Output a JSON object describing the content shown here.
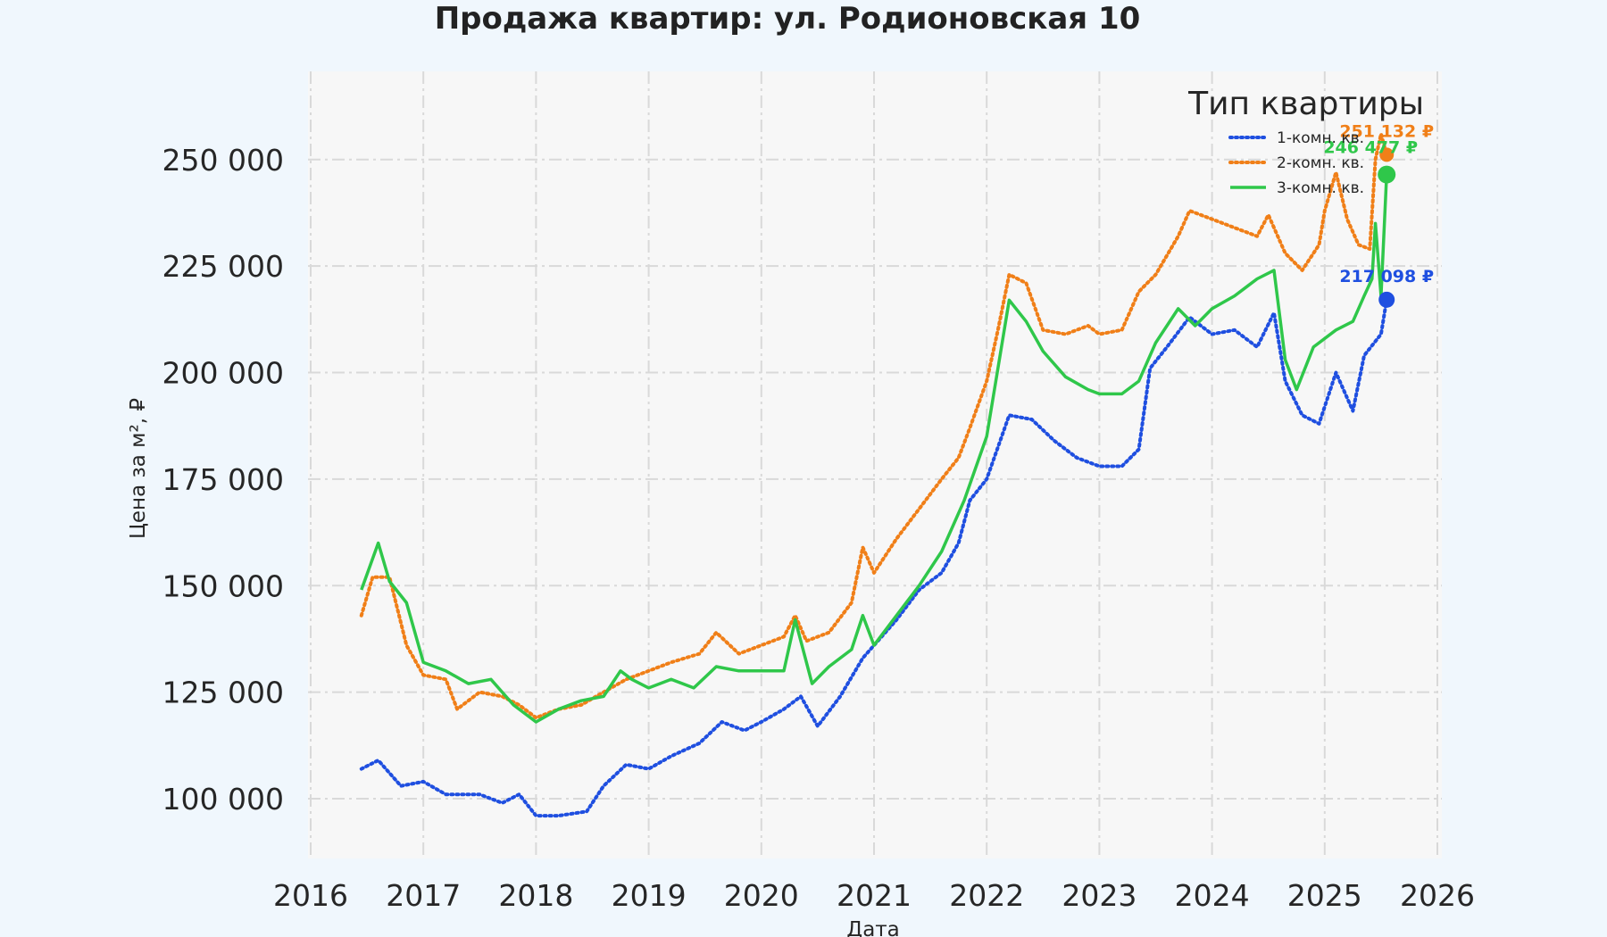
{
  "chart_data": {
    "type": "line",
    "title": "Продажа квартир: ул. Родионовская 10",
    "xlabel": "Дата",
    "ylabel": "Цена за м², ₽",
    "xlim": [
      2016,
      2026
    ],
    "ylim": [
      85000,
      265000
    ],
    "x_ticks": [
      "2016",
      "2017",
      "2018",
      "2019",
      "2020",
      "2021",
      "2022",
      "2023",
      "2024",
      "2025",
      "2026"
    ],
    "y_ticks": [
      "100 000",
      "125 000",
      "150 000",
      "175 000",
      "200 000",
      "225 000",
      "250 000"
    ],
    "grid": true,
    "legend": {
      "title": "Тип квартиры",
      "placement": "top-right"
    },
    "series": [
      {
        "name": "1-комн. кв.",
        "color": "#1f4fe0",
        "style": "dotted",
        "end_label": "217 098 ₽",
        "end_value": 217098,
        "points": [
          [
            2016.45,
            107000
          ],
          [
            2016.6,
            109000
          ],
          [
            2016.8,
            103000
          ],
          [
            2017.0,
            104000
          ],
          [
            2017.2,
            101000
          ],
          [
            2017.5,
            101000
          ],
          [
            2017.7,
            99000
          ],
          [
            2017.85,
            101000
          ],
          [
            2018.0,
            96000
          ],
          [
            2018.2,
            96000
          ],
          [
            2018.45,
            97000
          ],
          [
            2018.6,
            103000
          ],
          [
            2018.8,
            108000
          ],
          [
            2019.0,
            107000
          ],
          [
            2019.2,
            110000
          ],
          [
            2019.45,
            113000
          ],
          [
            2019.65,
            118000
          ],
          [
            2019.85,
            116000
          ],
          [
            2020.0,
            118000
          ],
          [
            2020.2,
            121000
          ],
          [
            2020.35,
            124000
          ],
          [
            2020.5,
            117000
          ],
          [
            2020.7,
            124000
          ],
          [
            2020.9,
            133000
          ],
          [
            2021.0,
            136000
          ],
          [
            2021.2,
            142000
          ],
          [
            2021.4,
            149000
          ],
          [
            2021.6,
            153000
          ],
          [
            2021.75,
            160000
          ],
          [
            2021.85,
            170000
          ],
          [
            2022.0,
            175000
          ],
          [
            2022.2,
            190000
          ],
          [
            2022.4,
            189000
          ],
          [
            2022.6,
            184000
          ],
          [
            2022.8,
            180000
          ],
          [
            2023.0,
            178000
          ],
          [
            2023.2,
            178000
          ],
          [
            2023.35,
            182000
          ],
          [
            2023.45,
            201000
          ],
          [
            2023.6,
            206000
          ],
          [
            2023.8,
            213000
          ],
          [
            2024.0,
            209000
          ],
          [
            2024.2,
            210000
          ],
          [
            2024.4,
            206000
          ],
          [
            2024.55,
            214000
          ],
          [
            2024.65,
            198000
          ],
          [
            2024.8,
            190000
          ],
          [
            2024.95,
            188000
          ],
          [
            2025.1,
            200000
          ],
          [
            2025.25,
            191000
          ],
          [
            2025.35,
            204000
          ],
          [
            2025.5,
            209000
          ],
          [
            2025.55,
            217098
          ]
        ]
      },
      {
        "name": "2-комн. кв.",
        "color": "#f07f18",
        "style": "dotted",
        "end_label": "251 132 ₽",
        "end_value": 251132,
        "points": [
          [
            2016.45,
            143000
          ],
          [
            2016.55,
            152000
          ],
          [
            2016.7,
            152000
          ],
          [
            2016.85,
            136000
          ],
          [
            2017.0,
            129000
          ],
          [
            2017.2,
            128000
          ],
          [
            2017.3,
            121000
          ],
          [
            2017.5,
            125000
          ],
          [
            2017.7,
            124000
          ],
          [
            2017.85,
            122000
          ],
          [
            2018.0,
            119000
          ],
          [
            2018.2,
            121000
          ],
          [
            2018.4,
            122000
          ],
          [
            2018.6,
            125000
          ],
          [
            2018.8,
            128000
          ],
          [
            2019.0,
            130000
          ],
          [
            2019.2,
            132000
          ],
          [
            2019.45,
            134000
          ],
          [
            2019.6,
            139000
          ],
          [
            2019.8,
            134000
          ],
          [
            2020.0,
            136000
          ],
          [
            2020.2,
            138000
          ],
          [
            2020.3,
            143000
          ],
          [
            2020.4,
            137000
          ],
          [
            2020.6,
            139000
          ],
          [
            2020.8,
            146000
          ],
          [
            2020.9,
            159000
          ],
          [
            2021.0,
            153000
          ],
          [
            2021.2,
            161000
          ],
          [
            2021.4,
            168000
          ],
          [
            2021.6,
            175000
          ],
          [
            2021.75,
            180000
          ],
          [
            2021.85,
            187000
          ],
          [
            2022.0,
            198000
          ],
          [
            2022.1,
            210000
          ],
          [
            2022.2,
            223000
          ],
          [
            2022.35,
            221000
          ],
          [
            2022.5,
            210000
          ],
          [
            2022.7,
            209000
          ],
          [
            2022.9,
            211000
          ],
          [
            2023.0,
            209000
          ],
          [
            2023.2,
            210000
          ],
          [
            2023.35,
            219000
          ],
          [
            2023.5,
            223000
          ],
          [
            2023.7,
            232000
          ],
          [
            2023.8,
            238000
          ],
          [
            2024.0,
            236000
          ],
          [
            2024.2,
            234000
          ],
          [
            2024.4,
            232000
          ],
          [
            2024.5,
            237000
          ],
          [
            2024.65,
            228000
          ],
          [
            2024.8,
            224000
          ],
          [
            2024.95,
            230000
          ],
          [
            2025.0,
            238000
          ],
          [
            2025.1,
            247000
          ],
          [
            2025.2,
            236000
          ],
          [
            2025.3,
            230000
          ],
          [
            2025.4,
            229000
          ],
          [
            2025.45,
            250000
          ],
          [
            2025.5,
            256000
          ],
          [
            2025.55,
            251132
          ]
        ]
      },
      {
        "name": "3-комн. кв.",
        "color": "#2fc74a",
        "style": "solid",
        "end_label": "246 477 ₽",
        "end_value": 246477,
        "points": [
          [
            2016.45,
            149000
          ],
          [
            2016.6,
            160000
          ],
          [
            2016.7,
            151000
          ],
          [
            2016.85,
            146000
          ],
          [
            2017.0,
            132000
          ],
          [
            2017.2,
            130000
          ],
          [
            2017.4,
            127000
          ],
          [
            2017.6,
            128000
          ],
          [
            2017.8,
            122000
          ],
          [
            2018.0,
            118000
          ],
          [
            2018.2,
            121000
          ],
          [
            2018.4,
            123000
          ],
          [
            2018.6,
            124000
          ],
          [
            2018.75,
            130000
          ],
          [
            2018.85,
            128000
          ],
          [
            2019.0,
            126000
          ],
          [
            2019.2,
            128000
          ],
          [
            2019.4,
            126000
          ],
          [
            2019.6,
            131000
          ],
          [
            2019.8,
            130000
          ],
          [
            2020.0,
            130000
          ],
          [
            2020.2,
            130000
          ],
          [
            2020.3,
            142000
          ],
          [
            2020.45,
            127000
          ],
          [
            2020.6,
            131000
          ],
          [
            2020.8,
            135000
          ],
          [
            2020.9,
            143000
          ],
          [
            2021.0,
            136000
          ],
          [
            2021.2,
            143000
          ],
          [
            2021.4,
            150000
          ],
          [
            2021.6,
            158000
          ],
          [
            2021.8,
            170000
          ],
          [
            2022.0,
            185000
          ],
          [
            2022.2,
            217000
          ],
          [
            2022.35,
            212000
          ],
          [
            2022.5,
            205000
          ],
          [
            2022.7,
            199000
          ],
          [
            2022.9,
            196000
          ],
          [
            2023.0,
            195000
          ],
          [
            2023.2,
            195000
          ],
          [
            2023.35,
            198000
          ],
          [
            2023.5,
            207000
          ],
          [
            2023.7,
            215000
          ],
          [
            2023.85,
            211000
          ],
          [
            2024.0,
            215000
          ],
          [
            2024.2,
            218000
          ],
          [
            2024.4,
            222000
          ],
          [
            2024.55,
            224000
          ],
          [
            2024.65,
            203000
          ],
          [
            2024.75,
            196000
          ],
          [
            2024.9,
            206000
          ],
          [
            2025.1,
            210000
          ],
          [
            2025.25,
            212000
          ],
          [
            2025.35,
            218000
          ],
          [
            2025.42,
            222000
          ],
          [
            2025.45,
            235000
          ],
          [
            2025.5,
            218000
          ],
          [
            2025.55,
            246477
          ]
        ]
      }
    ]
  }
}
